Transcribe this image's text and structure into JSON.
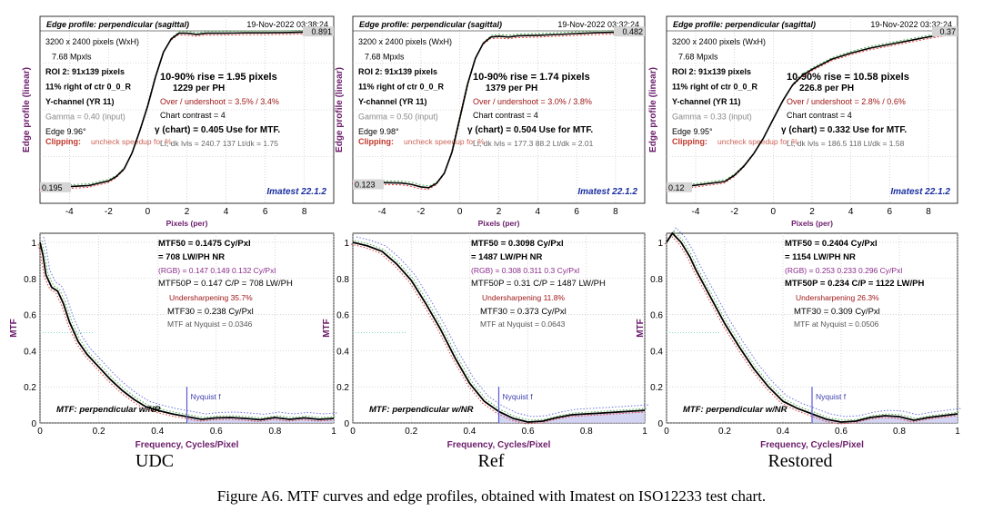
{
  "caption": "Figure A6. MTF curves and edge profiles, obtained with Imatest on ISO12233 test chart.",
  "chart_data": [
    {
      "type": "line",
      "panel": "UDC",
      "subcaption": "UDC",
      "edge": {
        "title": "Edge profile: perpendicular (sagittal)",
        "date": "19-Nov-2022 03:38:24",
        "ylabel": "Edge profile (linear)",
        "xlabel": "Pixels (per)",
        "xlim": [
          -5.5,
          9.5
        ],
        "xticks": [
          -4,
          -2,
          0,
          2,
          4,
          6,
          8
        ],
        "low_label": "0.195",
        "high_label": "0.891",
        "left_info": [
          "3200 x 2400 pixels (WxH)",
          "7.68 Mpxls",
          "ROI 2:  91x139 pixels",
          "11% right of ctr  0_0_R",
          "Y-channel  (YR 11)",
          "Gamma = 0.40 (input)",
          "Edge  9.96°"
        ],
        "clipping_label": "Clipping:",
        "clipping_note": "uncheck speedup for %",
        "rise": "10-90% rise = 1.95 pixels",
        "per_ph": "1229  per PH",
        "overshoot": "Over / undershoot =  3.5% /  3.4%",
        "contrast": "Chart contrast = 4",
        "gamma_chart": "γ (chart) = 0.405  Use for MTF.",
        "levels": "Lt, dk lvls = 240.7  137  Lt/dk = 1.75",
        "brand": "Imatest 22.1.2",
        "series": [
          {
            "x": [
              -5.5,
              -4,
              -3,
              -2.5,
              -2,
              -1.6,
              -1.2,
              -0.8,
              -0.4,
              0,
              0.4,
              0.8,
              1.2,
              1.6,
              2,
              2.5,
              3,
              4,
              5,
              6,
              7,
              8,
              9.5
            ],
            "y": [
              0.195,
              0.2,
              0.205,
              0.215,
              0.225,
              0.245,
              0.28,
              0.35,
              0.45,
              0.56,
              0.69,
              0.8,
              0.86,
              0.885,
              0.885,
              0.88,
              0.885,
              0.885,
              0.887,
              0.887,
              0.888,
              0.89,
              0.891
            ]
          }
        ]
      },
      "mtf": {
        "ylabel": "MTF",
        "xlabel": "Frequency, Cycles/Pixel",
        "xlim": [
          0,
          1
        ],
        "ylim": [
          0,
          1.05
        ],
        "xticks": [
          0,
          0.2,
          0.4,
          0.6,
          0.8,
          1
        ],
        "yticks": [
          0,
          0.2,
          0.4,
          0.6,
          0.8,
          1
        ],
        "mtf50": "MTF50 = 0.1475 Cy/Pxl",
        "lwph": "= 708 LW/PH  NR",
        "rgb": "(RGB) = 0.147  0.149  0.132 Cy/Pxl",
        "mtf50p": "MTF50P = 0.147 C/P = 708 LW/PH",
        "sharpening": "Undersharpening 35.7%",
        "mtf30": "MTF30 = 0.238 Cy/Pxl",
        "nyquist_mtf": "MTF at Nyquist = 0.0346",
        "nyquist_label": "Nyquist f",
        "legend_note": "MTF: perpendicular w/NR",
        "series": [
          {
            "x": [
              0,
              0.01,
              0.02,
              0.04,
              0.06,
              0.08,
              0.1,
              0.13,
              0.16,
              0.2,
              0.24,
              0.28,
              0.32,
              0.36,
              0.4,
              0.45,
              0.5,
              0.55,
              0.6,
              0.65,
              0.7,
              0.75,
              0.8,
              0.85,
              0.9,
              0.95,
              1
            ],
            "y": [
              1.0,
              0.93,
              0.82,
              0.75,
              0.73,
              0.66,
              0.56,
              0.45,
              0.38,
              0.31,
              0.24,
              0.18,
              0.13,
              0.09,
              0.07,
              0.05,
              0.035,
              0.02,
              0.028,
              0.03,
              0.025,
              0.018,
              0.03,
              0.02,
              0.028,
              0.02,
              0.025
            ]
          }
        ]
      }
    },
    {
      "type": "line",
      "panel": "Ref",
      "subcaption": "Ref",
      "edge": {
        "title": "Edge profile: perpendicular (sagittal)",
        "date": "19-Nov-2022 03:32:24",
        "ylabel": "Edge profile (linear)",
        "xlabel": "Pixels (per)",
        "xlim": [
          -5.5,
          9.5
        ],
        "xticks": [
          -4,
          -2,
          0,
          2,
          4,
          6,
          8
        ],
        "low_label": "0.123",
        "high_label": "0.482",
        "left_info": [
          "3200 x 2400 pixels (WxH)",
          "7.68 Mpxls",
          "ROI 2:  91x139 pixels",
          "11% right of ctr  0_0_R",
          "Y-channel  (YR 11)",
          "Gamma = 0.50 (input)",
          "Edge  9.98°"
        ],
        "clipping_label": "Clipping:",
        "clipping_note": "uncheck speedup for %",
        "rise": "10-90% rise = 1.74 pixels",
        "per_ph": "1379  per PH",
        "overshoot": "Over / undershoot =  3.0% /  3.8%",
        "contrast": "Chart contrast = 4",
        "gamma_chart": "γ (chart) = 0.504  Use for MTF.",
        "levels": "Lt, dk lvls = 177.3  88.2  Lt/dk = 2.01",
        "brand": "Imatest 22.1.2",
        "series": [
          {
            "x": [
              -5.5,
              -4,
              -3,
              -2.5,
              -2,
              -1.6,
              -1.2,
              -0.8,
              -0.4,
              0,
              0.4,
              0.8,
              1.2,
              1.6,
              2,
              2.5,
              3,
              4,
              5,
              6,
              7,
              8,
              9.5
            ],
            "y": [
              0.13,
              0.128,
              0.127,
              0.124,
              0.118,
              0.116,
              0.126,
              0.15,
              0.2,
              0.28,
              0.36,
              0.42,
              0.455,
              0.47,
              0.472,
              0.47,
              0.473,
              0.474,
              0.476,
              0.478,
              0.48,
              0.481,
              0.482
            ]
          }
        ]
      },
      "mtf": {
        "ylabel": "MTF",
        "xlabel": "Frequency, Cycles/Pixel",
        "xlim": [
          0,
          1
        ],
        "ylim": [
          0,
          1.05
        ],
        "xticks": [
          0,
          0.2,
          0.4,
          0.6,
          0.8,
          1
        ],
        "yticks": [
          0,
          0.2,
          0.4,
          0.6,
          0.8,
          1
        ],
        "mtf50": "MTF50 = 0.3098 Cy/Pxl",
        "lwph": "= 1487 LW/PH  NR",
        "rgb": "(RGB) = 0.308  0.311  0.3 Cy/Pxl",
        "mtf50p": "MTF50P = 0.31 C/P = 1487 LW/PH",
        "sharpening": "Undersharpening 11.8%",
        "mtf30": "MTF30 = 0.373 Cy/Pxl",
        "nyquist_mtf": "MTF at Nyquist = 0.0643",
        "nyquist_label": "Nyquist f",
        "legend_note": "MTF: perpendicular w/NR",
        "series": [
          {
            "x": [
              0,
              0.05,
              0.1,
              0.15,
              0.2,
              0.25,
              0.3,
              0.35,
              0.4,
              0.45,
              0.5,
              0.55,
              0.6,
              0.65,
              0.7,
              0.75,
              0.8,
              0.85,
              0.9,
              0.95,
              1
            ],
            "y": [
              1.0,
              0.98,
              0.95,
              0.88,
              0.79,
              0.66,
              0.52,
              0.36,
              0.22,
              0.12,
              0.064,
              0.025,
              0.005,
              0.01,
              0.03,
              0.045,
              0.05,
              0.055,
              0.06,
              0.065,
              0.07
            ]
          }
        ]
      }
    },
    {
      "type": "line",
      "panel": "Restored",
      "subcaption": "Restored",
      "edge": {
        "title": "Edge profile: perpendicular (sagittal)",
        "date": "19-Nov-2022 03:32:24",
        "ylabel": "Edge profile (linear)",
        "xlabel": "Pixels (per)",
        "xlim": [
          -5.5,
          9.5
        ],
        "xticks": [
          -4,
          -2,
          0,
          2,
          4,
          6,
          8
        ],
        "low_label": "0.12",
        "high_label": "0.37",
        "left_info": [
          "3200 x 2400 pixels (WxH)",
          "7.68 Mpxls",
          "ROI 2:  91x139 pixels",
          "11% right of ctr  0_0_R",
          "Y-channel  (YR 11)",
          "Gamma = 0.33 (input)",
          "Edge  9.95°"
        ],
        "clipping_label": "Clipping:",
        "clipping_note": "uncheck speedup for %",
        "rise": "10-90% rise = 10.58 pixels",
        "per_ph": "226.8 per PH",
        "overshoot": "Over / undershoot =  2.8% /  0.6%",
        "contrast": "Chart contrast = 4",
        "gamma_chart": "γ (chart) = 0.332  Use for MTF.",
        "levels": "Lt, dk lvls = 186.5  118  Lt/dk = 1.58",
        "brand": "Imatest 22.1.2",
        "series": [
          {
            "x": [
              -5.5,
              -4.5,
              -3.5,
              -2.5,
              -2,
              -1.5,
              -1,
              -0.5,
              0,
              0.5,
              1,
              1.5,
              2,
              2.5,
              3,
              4,
              5,
              6,
              7,
              8,
              9.5
            ],
            "y": [
              0.12,
              0.122,
              0.126,
              0.13,
              0.14,
              0.155,
              0.175,
              0.2,
              0.23,
              0.26,
              0.285,
              0.3,
              0.31,
              0.318,
              0.326,
              0.336,
              0.344,
              0.35,
              0.356,
              0.362,
              0.37
            ]
          }
        ]
      },
      "mtf": {
        "ylabel": "MTF",
        "xlabel": "Frequency, Cycles/Pixel",
        "xlim": [
          0,
          1
        ],
        "ylim": [
          0,
          1.05
        ],
        "xticks": [
          0,
          0.2,
          0.4,
          0.6,
          0.8,
          1
        ],
        "yticks": [
          0,
          0.2,
          0.4,
          0.6,
          0.8,
          1
        ],
        "mtf50": "MTF50 = 0.2404 Cy/Pxl",
        "lwph": "= 1154 LW/PH  NR",
        "rgb": "(RGB) = 0.253  0.233  0.296 Cy/Pxl",
        "mtf50p": "MTF50P = 0.234 C/P = 1122 LW/PH",
        "sharpening": "Undersharpening 26.3%",
        "mtf30": "MTF30 = 0.309 Cy/Pxl",
        "nyquist_mtf": "MTF at Nyquist = 0.0506",
        "nyquist_label": "Nyquist f",
        "legend_note": "MTF: perpendicular w/NR",
        "series": [
          {
            "x": [
              0,
              0.02,
              0.05,
              0.08,
              0.1,
              0.15,
              0.2,
              0.25,
              0.3,
              0.35,
              0.4,
              0.45,
              0.5,
              0.55,
              0.6,
              0.65,
              0.7,
              0.75,
              0.8,
              0.85,
              0.9,
              0.95,
              1
            ],
            "y": [
              1.0,
              1.05,
              1.0,
              0.92,
              0.85,
              0.7,
              0.55,
              0.42,
              0.3,
              0.2,
              0.12,
              0.08,
              0.05,
              0.02,
              0.005,
              0.01,
              0.03,
              0.04,
              0.035,
              0.015,
              0.03,
              0.04,
              0.05
            ]
          }
        ]
      }
    }
  ]
}
